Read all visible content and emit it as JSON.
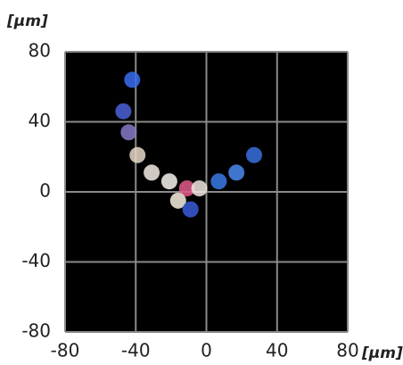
{
  "chart_data": {
    "type": "scatter",
    "ylabel": "[µm]",
    "xlabel": "[µm]",
    "x": [
      -42,
      -47,
      -44,
      -39,
      -31,
      -21,
      -11,
      -4,
      -16,
      -9,
      7,
      17,
      27
    ],
    "values": [
      64,
      46,
      34,
      21,
      11,
      6,
      2,
      2,
      -5,
      -10,
      6,
      11,
      21
    ],
    "colors": [
      "#3a6cf0",
      "#4a62d8",
      "#8a7ac8",
      "#e8d8c8",
      "#f4ece4",
      "#f8f4f0",
      "#e05a8a",
      "#f0e8e0",
      "#f8f0e0",
      "#3a5ad8",
      "#3a7ae8",
      "#4a8af0",
      "#3a70e0"
    ],
    "background": "#000000",
    "xlim": [
      -80,
      80
    ],
    "ylim": [
      -80,
      80
    ],
    "xticks": [
      -80,
      -40,
      0,
      40,
      80
    ],
    "yticks": [
      -80,
      -40,
      0,
      40,
      80
    ],
    "grid": true
  }
}
